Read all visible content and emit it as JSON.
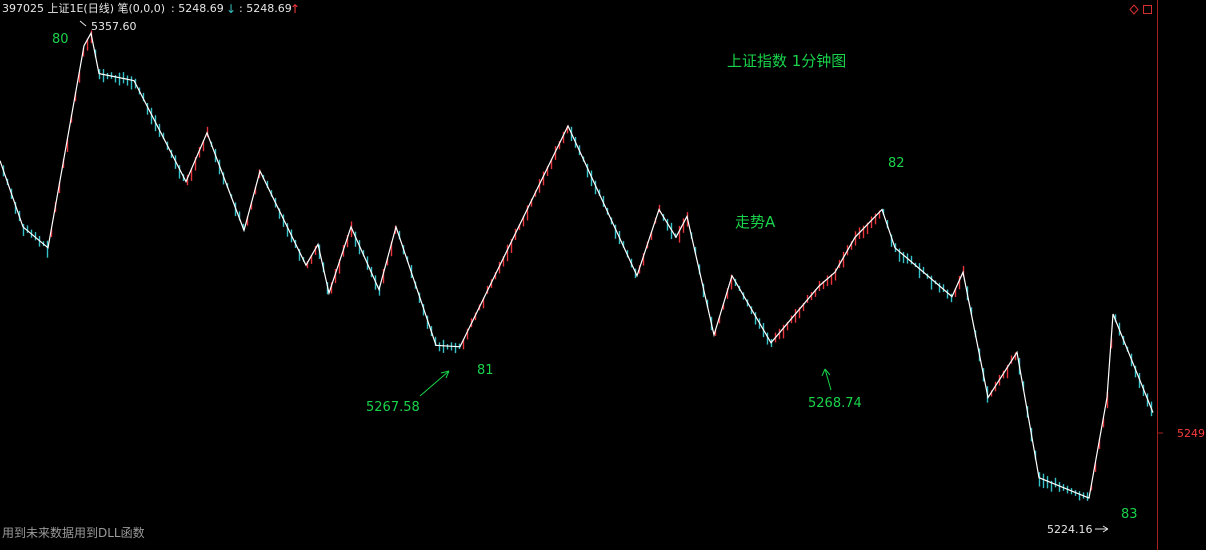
{
  "header": {
    "code_title": "397025 上证1E(日线) 笔(0,0,0)",
    "price_1": ": 5248.69",
    "arrow_1": "↓",
    "price_2": ": 5248.69",
    "arrow_2": "↑"
  },
  "right_axis": {
    "last_price_label": "5249"
  },
  "footer_note": "用到未来数据用到DLL函数",
  "colors": {
    "up": "#e8363c",
    "down": "#35c1c8",
    "line": "#ffffff",
    "text_green": "#19d34a",
    "frame": "#a32020"
  },
  "chart_data": {
    "type": "line",
    "title": "上证指数 1分钟图",
    "xlabel": "",
    "ylabel": "",
    "ylim": [
      5215,
      5365
    ],
    "price_labels": [
      {
        "text": "5357.60",
        "value": 5357.6
      },
      {
        "text": "5267.58",
        "value": 5267.58
      },
      {
        "text": "5268.74",
        "value": 5268.74
      },
      {
        "text": "5224.16",
        "value": 5224.16
      }
    ],
    "wave_labels": [
      "80",
      "81",
      "82",
      "83"
    ],
    "trend_label": "走势A",
    "series": [
      {
        "type": "zigzag",
        "x": [
          0,
          23,
          48,
          84,
          91,
          99,
          134,
          186,
          207,
          244,
          260,
          306,
          318,
          329,
          351,
          379,
          396,
          436,
          460,
          568,
          637,
          659,
          676,
          687,
          714,
          732,
          771,
          819,
          835,
          855,
          882,
          895,
          952,
          963,
          988,
          1017,
          1039,
          1089,
          1107,
          1113,
          1153
        ],
        "values": [
          5321,
          5302,
          5296,
          5354,
          5357.6,
          5346,
          5344,
          5315,
          5329,
          5301,
          5318,
          5291,
          5297,
          5283,
          5302,
          5284,
          5302,
          5268,
          5267.58,
          5331,
          5288,
          5307,
          5299,
          5305,
          5271,
          5288,
          5268.74,
          5285,
          5289,
          5299,
          5307,
          5296,
          5282,
          5289,
          5253,
          5266,
          5230,
          5224.16,
          5253,
          5277,
          5248.69
        ]
      }
    ]
  }
}
